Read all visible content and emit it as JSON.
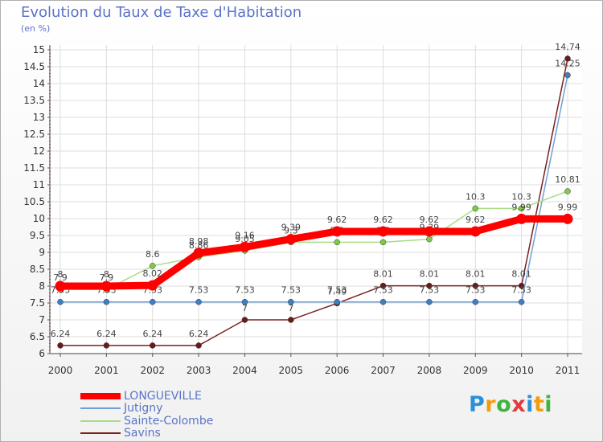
{
  "chart_data": {
    "type": "line",
    "title": "Evolution du Taux de Taxe d'Habitation",
    "ylabel": "(en %)",
    "xlabel": "",
    "x": [
      "2000",
      "2001",
      "2002",
      "2003",
      "2004",
      "2005",
      "2006",
      "2007",
      "2008",
      "2009",
      "2010",
      "2011"
    ],
    "ylim": [
      6,
      15
    ],
    "yticks": [
      "6",
      "6.5",
      "7",
      "7.5",
      "8",
      "8.5",
      "9",
      "9.5",
      "10",
      "10.5",
      "11",
      "11.5",
      "12",
      "12.5",
      "13",
      "13.5",
      "14",
      "14.5",
      "15"
    ],
    "grid": true,
    "legend_position": "bottom-left",
    "series": [
      {
        "name": "Savins",
        "color": "#7a2020",
        "marker": "#6b1a1a",
        "values": [
          6.24,
          6.24,
          6.24,
          6.24,
          7,
          7,
          7.49,
          8.01,
          8.01,
          8.01,
          8.01,
          14.74
        ],
        "labels": [
          "6.24",
          "6.24",
          "6.24",
          "6.24",
          "7",
          "7",
          "7.49",
          "8.01",
          "8.01",
          "8.01",
          "8.01",
          "14.74"
        ]
      },
      {
        "name": "Jutigny",
        "color": "#6fa0d8",
        "marker": "#3f7fc6",
        "values": [
          7.53,
          7.53,
          7.53,
          7.53,
          7.53,
          7.53,
          7.53,
          7.53,
          7.53,
          7.53,
          7.53,
          14.25
        ],
        "labels": [
          "7.53",
          "7.53",
          "7.53",
          "7.53",
          "7.53",
          "7.53",
          "7.53",
          "7.53",
          "7.53",
          "7.53",
          "7.53",
          "14.25"
        ]
      },
      {
        "name": "Sainte-Colombe",
        "color": "#a8dc86",
        "marker": "#7ecb46",
        "values": [
          7.9,
          7.9,
          8.6,
          8.86,
          9.05,
          9.3,
          9.3,
          9.3,
          9.39,
          10.3,
          10.3,
          10.81
        ],
        "labels": [
          "7.9",
          "7.9",
          "8.6",
          "8.86",
          "9.05",
          "9.3",
          "9.3",
          "9.3",
          "9.39",
          "10.3",
          "10.3",
          "10.81"
        ]
      },
      {
        "name": "LONGUEVILLE",
        "color": "#ff0000",
        "marker": "#ff0000",
        "values": [
          8,
          8,
          8.02,
          8.98,
          9.16,
          9.39,
          9.62,
          9.62,
          9.62,
          9.62,
          9.99,
          9.99
        ],
        "labels": [
          "8",
          "8",
          "8.02",
          "8.98",
          "9.16",
          "9.39",
          "9.62",
          "9.62",
          "9.62",
          "9.62",
          "9.99",
          "9.99"
        ]
      }
    ]
  },
  "legend": {
    "items": [
      {
        "label": "LONGUEVILLE",
        "color": "#ff0000"
      },
      {
        "label": "Jutigny",
        "color": "#6fa0d8"
      },
      {
        "label": "Sainte-Colombe",
        "color": "#a8dc86"
      },
      {
        "label": "Savins",
        "color": "#7a2020"
      }
    ]
  },
  "logo": {
    "letters": [
      "P",
      "r",
      "o",
      "x",
      "i",
      "t",
      "i"
    ],
    "colors": [
      "#2f8fd6",
      "#f39c12",
      "#3fb43f",
      "#e23b3b",
      "#2f8fd6",
      "#f39c12",
      "#3fb43f"
    ]
  }
}
